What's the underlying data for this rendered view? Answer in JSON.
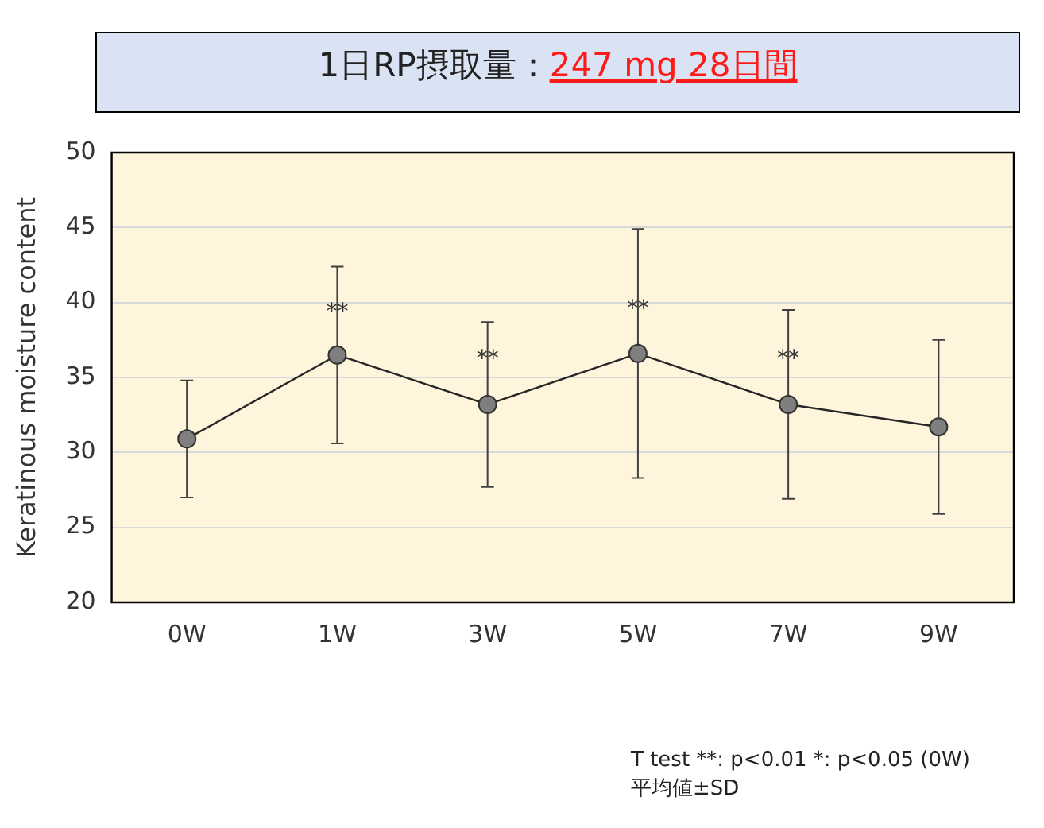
{
  "chart_data": {
    "type": "line",
    "title": "1日RP摂取量：247 mg  28日間",
    "ylabel": "Keratinous moisture content",
    "categories": [
      "0W",
      "1W",
      "3W",
      "5W",
      "7W",
      "9W"
    ],
    "series": [
      {
        "color": "#7f7f7f",
        "values": [
          30.9,
          36.5,
          33.2,
          36.6,
          33.2,
          31.7
        ],
        "errors": [
          3.9,
          5.9,
          5.5,
          8.3,
          6.3,
          5.8
        ]
      }
    ],
    "ylim": [
      20,
      50
    ],
    "yticks": [
      20,
      25,
      30,
      35,
      40,
      45,
      50
    ],
    "grid": "y",
    "legend": false,
    "marker": "circle",
    "line_style": "solid",
    "annotations": [
      {
        "text": "**",
        "x": "1W",
        "y": 39.3
      },
      {
        "text": "**",
        "x": "3W",
        "y": 36.2
      },
      {
        "text": "**",
        "x": "5W",
        "y": 39.5
      },
      {
        "text": "**",
        "x": "7W",
        "y": 36.2
      },
      "T test  **: p<0.01 *: p<0.05 (0W)",
      "平均値±SD"
    ]
  }
}
